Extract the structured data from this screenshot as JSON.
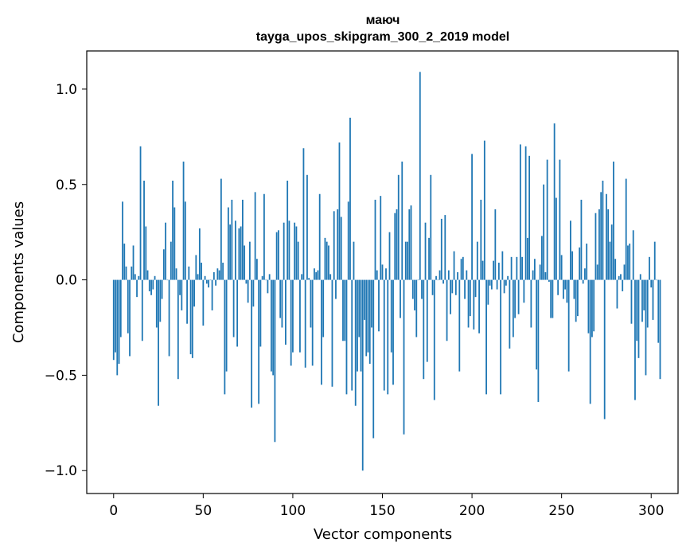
{
  "chart_data": {
    "type": "bar",
    "title_line1": "маюч",
    "title_line2": "tayga_upos_skipgram_300_2_2019 model",
    "xlabel": "Vector components",
    "ylabel": "Components values",
    "xlim": [
      -15,
      315
    ],
    "ylim": [
      -1.12,
      1.2
    ],
    "xticks": [
      0,
      50,
      100,
      150,
      200,
      250,
      300
    ],
    "xtick_labels": [
      "0",
      "50",
      "100",
      "150",
      "200",
      "250",
      "300"
    ],
    "yticks": [
      -1.0,
      -0.5,
      0.0,
      0.5,
      1.0
    ],
    "ytick_labels": [
      "−1.0",
      "−0.5",
      "0.0",
      "0.5",
      "1.0"
    ],
    "bar_color": "#1f77b4",
    "grid": false,
    "values": [
      -0.42,
      -0.38,
      -0.5,
      -0.44,
      -0.3,
      0.41,
      0.19,
      0.07,
      -0.28,
      -0.4,
      0.07,
      0.18,
      0.03,
      -0.09,
      0.02,
      0.7,
      -0.32,
      0.52,
      0.28,
      0.05,
      -0.06,
      -0.08,
      -0.05,
      0.02,
      -0.25,
      -0.66,
      -0.22,
      -0.1,
      0.16,
      0.3,
      0.0,
      -0.4,
      0.2,
      0.52,
      0.38,
      0.06,
      -0.52,
      -0.08,
      -0.16,
      0.62,
      0.41,
      -0.23,
      0.07,
      -0.39,
      -0.41,
      -0.14,
      0.13,
      0.03,
      0.27,
      0.09,
      -0.24,
      0.02,
      -0.02,
      -0.04,
      0.0,
      -0.16,
      0.04,
      -0.03,
      0.06,
      0.05,
      0.53,
      0.09,
      -0.6,
      -0.48,
      0.38,
      0.29,
      0.42,
      -0.3,
      0.31,
      -0.35,
      0.27,
      0.28,
      0.42,
      0.18,
      -0.02,
      -0.12,
      0.2,
      -0.67,
      -0.14,
      0.46,
      0.11,
      -0.65,
      -0.35,
      0.02,
      0.45,
      0.0,
      -0.07,
      0.03,
      -0.48,
      -0.5,
      -0.85,
      0.25,
      0.26,
      -0.2,
      -0.25,
      0.3,
      -0.34,
      0.52,
      0.31,
      -0.45,
      -0.38,
      0.3,
      0.28,
      0.2,
      -0.38,
      0.03,
      0.69,
      -0.46,
      0.55,
      0.01,
      -0.25,
      -0.45,
      0.06,
      0.04,
      0.05,
      0.45,
      -0.55,
      -0.3,
      0.22,
      0.2,
      0.18,
      0.03,
      -0.56,
      0.36,
      -0.1,
      0.37,
      0.72,
      0.33,
      -0.32,
      -0.32,
      -0.6,
      0.41,
      0.85,
      -0.58,
      0.2,
      -0.66,
      -0.48,
      -0.3,
      -0.48,
      -1.0,
      -0.21,
      -0.4,
      -0.38,
      -0.44,
      -0.25,
      -0.83,
      0.42,
      0.05,
      -0.27,
      0.44,
      0.08,
      -0.58,
      0.06,
      -0.6,
      0.25,
      -0.38,
      -0.55,
      0.35,
      0.37,
      0.55,
      -0.2,
      0.62,
      -0.81,
      0.2,
      0.2,
      0.37,
      0.39,
      -0.1,
      -0.16,
      -0.3,
      0.0,
      1.09,
      -0.1,
      -0.52,
      0.3,
      -0.43,
      0.22,
      0.55,
      -0.08,
      -0.63,
      0.02,
      0.0,
      0.05,
      0.32,
      -0.02,
      0.34,
      -0.32,
      0.05,
      -0.18,
      -0.07,
      0.15,
      -0.08,
      0.04,
      -0.48,
      0.11,
      0.12,
      -0.1,
      0.05,
      -0.25,
      -0.19,
      0.66,
      -0.26,
      -0.09,
      0.2,
      -0.28,
      0.42,
      0.1,
      0.73,
      -0.6,
      -0.13,
      -0.03,
      -0.05,
      0.1,
      0.37,
      -0.05,
      0.09,
      -0.6,
      0.15,
      -0.07,
      -0.03,
      0.02,
      -0.36,
      0.12,
      -0.3,
      -0.2,
      0.12,
      -0.18,
      0.71,
      0.12,
      -0.12,
      0.7,
      0.22,
      0.65,
      -0.25,
      0.05,
      0.11,
      -0.47,
      -0.64,
      0.08,
      0.23,
      0.5,
      0.04,
      0.63,
      -0.01,
      -0.2,
      -0.2,
      0.82,
      0.43,
      -0.08,
      0.63,
      0.13,
      -0.1,
      -0.05,
      -0.12,
      -0.48,
      0.31,
      0.15,
      -0.1,
      -0.22,
      -0.19,
      0.17,
      0.42,
      -0.02,
      0.06,
      0.19,
      -0.28,
      -0.65,
      -0.3,
      -0.27,
      0.35,
      0.08,
      0.37,
      0.46,
      0.52,
      -0.73,
      0.45,
      0.37,
      0.2,
      0.29,
      0.62,
      0.11,
      -0.15,
      0.02,
      0.03,
      -0.06,
      0.08,
      0.53,
      0.18,
      0.19,
      -0.23,
      0.26,
      -0.63,
      -0.32,
      -0.41,
      0.03,
      -0.22,
      -0.16,
      -0.5,
      -0.25,
      0.12,
      -0.04,
      -0.21,
      0.2,
      0.0,
      -0.33,
      -0.52
    ]
  }
}
